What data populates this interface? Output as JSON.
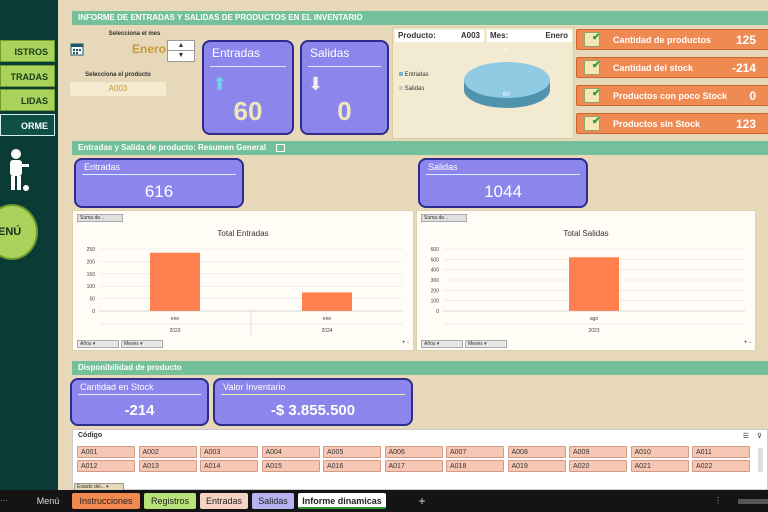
{
  "sidebar": {
    "buttons": [
      {
        "label": "ISTROS"
      },
      {
        "label": "TRADAS"
      },
      {
        "label": "LIDAS"
      },
      {
        "label": "ORME"
      }
    ],
    "menu_label": "ENÚ"
  },
  "header": {
    "title": "INFORME DE ENTRADAS Y SALIDAS DE PRODUCTOS EN EL INVENTARIO"
  },
  "selectors": {
    "month_label": "Selecciona el mes",
    "month_value": "Enero",
    "product_label": "Selecciona el producto",
    "product_value": "A003"
  },
  "cards": {
    "entradas_label": "Entradas",
    "entradas_value": "60",
    "salidas_label": "Salidas",
    "salidas_value": "0"
  },
  "mini": {
    "producto_label": "Producto:",
    "producto_value": "A003",
    "mes_label": "Mes:",
    "mes_value": "Enero",
    "legend": [
      "Entradas",
      "Salidas"
    ],
    "pie_top": "0",
    "pie_value": "60"
  },
  "kpis": [
    {
      "label": "Cantidad de productos",
      "value": "125"
    },
    {
      "label": "Cantidad del stock",
      "value": "-214"
    },
    {
      "label": "Productos con poco Stock",
      "value": "0"
    },
    {
      "label": "Productos sin Stock",
      "value": "123"
    }
  ],
  "section2": {
    "title": "Entradas y Salida de producto: Resumen General"
  },
  "summary": {
    "entradas_label": "Entradas",
    "entradas_value": "616",
    "salidas_label": "Salidas",
    "salidas_value": "1044"
  },
  "suma_label": "Suma de...",
  "chart_data": [
    {
      "type": "bar",
      "title": "Total Entradas",
      "categories": [
        "ene 2023",
        "ene 2024"
      ],
      "values": [
        235,
        75
      ],
      "ylim": [
        0,
        250
      ],
      "yticks": [
        "250",
        "200",
        "150",
        "100",
        "50",
        "0"
      ],
      "x_month": [
        "ene",
        "ene"
      ],
      "x_year": [
        "2023",
        "2024"
      ],
      "color": "#ff7f4f"
    },
    {
      "type": "bar",
      "title": "Total Salidas",
      "categories": [
        "ago 2023"
      ],
      "values": [
        520
      ],
      "ylim": [
        0,
        600
      ],
      "yticks": [
        "600",
        "500",
        "400",
        "300",
        "200",
        "100",
        "0"
      ],
      "x_month": [
        "ago"
      ],
      "x_year": [
        "2023"
      ],
      "color": "#ff7f4f"
    }
  ],
  "filters": {
    "years": "Años",
    "months": "Meses"
  },
  "section3": {
    "title": "Disponibilidad de producto"
  },
  "availability": {
    "stock_label": "Cantidad en Stock",
    "stock_value": "-214",
    "valor_label": "Valor Inventario",
    "valor_value": "-$ 3.855.500"
  },
  "codes": {
    "header": "Código",
    "row1": [
      "A001",
      "A002",
      "A003",
      "A004",
      "A005",
      "A006",
      "A007",
      "A008",
      "A009",
      "A010",
      "A011"
    ],
    "row2": [
      "A012",
      "A013",
      "A014",
      "A015",
      "A016",
      "A017",
      "A018",
      "A019",
      "A020",
      "A021",
      "A022"
    ],
    "estado": "Estado del..."
  },
  "tabs": {
    "menu": "Menú",
    "items": [
      {
        "label": "Instrucciones",
        "color": "#f28a50"
      },
      {
        "label": "Registros",
        "color": "#b9e27a"
      },
      {
        "label": "Entradas",
        "color": "#f7d3c6"
      },
      {
        "label": "Salidas",
        "color": "#b7b2f0"
      },
      {
        "label": "Informe dinamicas",
        "color": "#ffffff"
      }
    ],
    "add": "+"
  }
}
